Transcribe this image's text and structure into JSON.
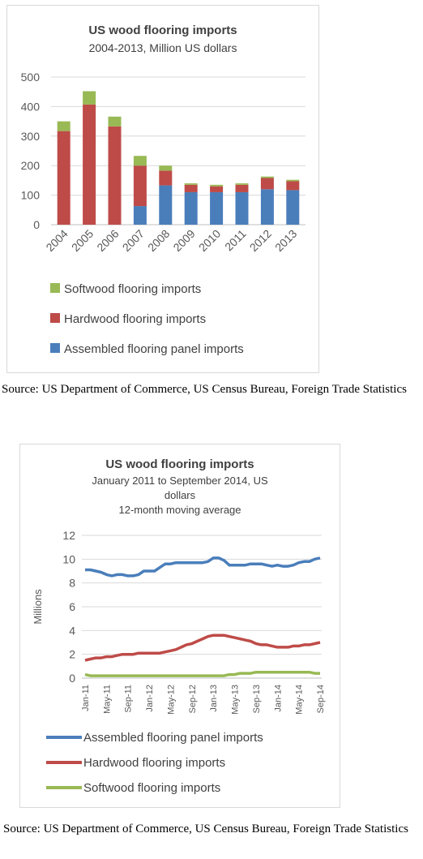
{
  "chart_data": [
    {
      "type": "bar",
      "stacked": true,
      "title": "US wood flooring imports",
      "subtitle": "2004-2013, Million US dollars",
      "categories": [
        "2004",
        "2005",
        "2006",
        "2007",
        "2008",
        "2009",
        "2010",
        "2011",
        "2012",
        "2013"
      ],
      "series": [
        {
          "name": "Assembled flooring panel imports",
          "color": "#4a7ebb",
          "values": [
            0,
            0,
            0,
            63,
            133,
            110,
            110,
            110,
            120,
            117
          ]
        },
        {
          "name": "Hardwood flooring imports",
          "color": "#be4b48",
          "values": [
            317,
            407,
            333,
            137,
            50,
            25,
            20,
            25,
            38,
            30
          ]
        },
        {
          "name": "Softwood flooring imports",
          "color": "#98b954",
          "values": [
            33,
            45,
            33,
            33,
            17,
            5,
            5,
            5,
            5,
            5
          ]
        }
      ],
      "legend_order": [
        "Softwood flooring imports",
        "Hardwood flooring imports",
        "Assembled flooring panel imports"
      ],
      "yticks": [
        "0",
        "100",
        "200",
        "300",
        "400",
        "500"
      ],
      "ylim": [
        0,
        500
      ],
      "grid": true,
      "legend_position": "bottom",
      "source": "Source: US Department of Commerce, US Census Bureau, Foreign Trade Statistics"
    },
    {
      "type": "line",
      "title": "US wood flooring imports",
      "subtitle_lines": [
        "January 2011 to September 2014, US",
        "dollars",
        "12-month moving average"
      ],
      "ylabel": "Millions",
      "ylim": [
        0,
        12
      ],
      "yticks": [
        "0",
        "2",
        "4",
        "6",
        "8",
        "10",
        "12"
      ],
      "xtick_labels": [
        "Jan-11",
        "May-11",
        "Sep-11",
        "Jan-12",
        "May-12",
        "Sep-12",
        "Jan-13",
        "May-13",
        "Sep-13",
        "Jan-14",
        "May-14",
        "Sep-14"
      ],
      "x_months": [
        "Jan-11",
        "Feb-11",
        "Mar-11",
        "Apr-11",
        "May-11",
        "Jun-11",
        "Jul-11",
        "Aug-11",
        "Sep-11",
        "Oct-11",
        "Nov-11",
        "Dec-11",
        "Jan-12",
        "Feb-12",
        "Mar-12",
        "Apr-12",
        "May-12",
        "Jun-12",
        "Jul-12",
        "Aug-12",
        "Sep-12",
        "Oct-12",
        "Nov-12",
        "Dec-12",
        "Jan-13",
        "Feb-13",
        "Mar-13",
        "Apr-13",
        "May-13",
        "Jun-13",
        "Jul-13",
        "Aug-13",
        "Sep-13",
        "Oct-13",
        "Nov-13",
        "Dec-13",
        "Jan-14",
        "Feb-14",
        "Mar-14",
        "Apr-14",
        "May-14",
        "Jun-14",
        "Jul-14",
        "Aug-14",
        "Sep-14"
      ],
      "series": [
        {
          "name": "Assembled flooring panel imports",
          "color": "#4a7ebb",
          "values": [
            9.1,
            9.1,
            9.0,
            8.9,
            8.7,
            8.6,
            8.7,
            8.7,
            8.6,
            8.6,
            8.7,
            9.0,
            9.0,
            9.0,
            9.3,
            9.6,
            9.6,
            9.7,
            9.7,
            9.7,
            9.7,
            9.7,
            9.7,
            9.8,
            10.1,
            10.1,
            9.9,
            9.5,
            9.5,
            9.5,
            9.5,
            9.6,
            9.6,
            9.6,
            9.5,
            9.4,
            9.5,
            9.4,
            9.4,
            9.5,
            9.7,
            9.8,
            9.8,
            10.0,
            10.1
          ]
        },
        {
          "name": "Hardwood flooring imports",
          "color": "#be4b48",
          "values": [
            1.5,
            1.6,
            1.7,
            1.7,
            1.8,
            1.8,
            1.9,
            2.0,
            2.0,
            2.0,
            2.1,
            2.1,
            2.1,
            2.1,
            2.1,
            2.2,
            2.3,
            2.4,
            2.6,
            2.8,
            2.9,
            3.1,
            3.3,
            3.5,
            3.6,
            3.6,
            3.6,
            3.5,
            3.4,
            3.3,
            3.2,
            3.1,
            2.9,
            2.8,
            2.8,
            2.7,
            2.6,
            2.6,
            2.6,
            2.7,
            2.7,
            2.8,
            2.8,
            2.9,
            3.0
          ]
        },
        {
          "name": "Softwood flooring imports",
          "color": "#98b954",
          "values": [
            0.3,
            0.2,
            0.2,
            0.2,
            0.2,
            0.2,
            0.2,
            0.2,
            0.2,
            0.2,
            0.2,
            0.2,
            0.2,
            0.2,
            0.2,
            0.2,
            0.2,
            0.2,
            0.2,
            0.2,
            0.2,
            0.2,
            0.2,
            0.2,
            0.2,
            0.2,
            0.2,
            0.3,
            0.3,
            0.4,
            0.4,
            0.4,
            0.5,
            0.5,
            0.5,
            0.5,
            0.5,
            0.5,
            0.5,
            0.5,
            0.5,
            0.5,
            0.5,
            0.4,
            0.4
          ]
        }
      ],
      "grid": true,
      "legend_position": "bottom",
      "source": "Source: US Department of Commerce, US Census Bureau, Foreign Trade Statistics"
    }
  ]
}
